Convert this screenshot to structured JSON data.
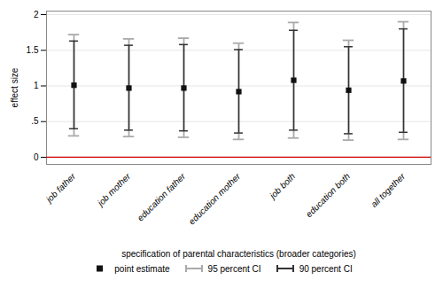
{
  "chart_data": {
    "type": "errorbar",
    "xlabel": "specification of parental characteristics (broader categories)",
    "ylabel": "effect size",
    "categories": [
      "job father",
      "job mother",
      "education father",
      "education mother",
      "job both",
      "education both",
      "all together"
    ],
    "series": [
      {
        "name": "point estimate",
        "type": "scatter",
        "marker": "square",
        "color": "#111111",
        "values": [
          1.01,
          0.97,
          0.97,
          0.92,
          1.08,
          0.94,
          1.07
        ]
      },
      {
        "name": "95 percent CI",
        "type": "errorbar",
        "color": "#aaaaaa",
        "lower": [
          0.3,
          0.29,
          0.28,
          0.25,
          0.27,
          0.24,
          0.25
        ],
        "upper": [
          1.72,
          1.66,
          1.67,
          1.6,
          1.89,
          1.64,
          1.9
        ]
      },
      {
        "name": "90 percent CI",
        "type": "errorbar",
        "color": "#333333",
        "lower": [
          0.4,
          0.38,
          0.37,
          0.34,
          0.38,
          0.33,
          0.35
        ],
        "upper": [
          1.63,
          1.57,
          1.58,
          1.51,
          1.78,
          1.55,
          1.8
        ]
      }
    ],
    "hline": {
      "y": 0,
      "color": "#cc0000"
    },
    "ylim": [
      -0.1,
      2.05
    ],
    "yticks": [
      0,
      {
        "value": 0.5,
        "label": ".5"
      },
      1,
      1.5,
      2
    ],
    "grid": true,
    "legend": "bottom"
  }
}
